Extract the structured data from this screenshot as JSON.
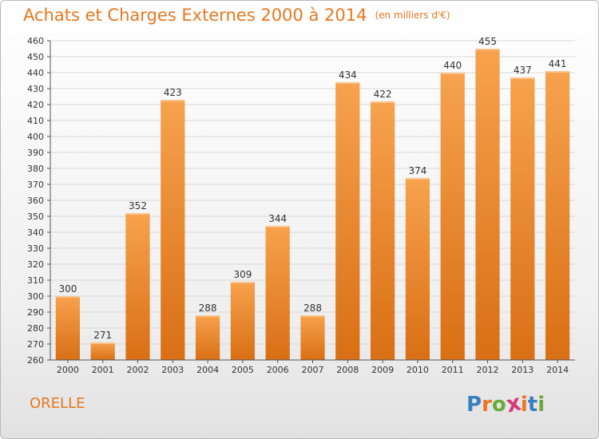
{
  "header": {
    "title": "Achats et Charges Externes 2000 à 2014",
    "unit": "(en milliers d'€)"
  },
  "footer": {
    "commune": "ORELLE",
    "logo_letters": [
      "P",
      "r",
      "o",
      "x",
      "i",
      "t",
      "i"
    ],
    "logo_colors": [
      "#3a7fc2",
      "#e8771e",
      "#6aaa3a",
      "#d63a7a",
      "#e8771e",
      "#3a7fc2",
      "#6aaa3a"
    ]
  },
  "colors": {
    "accent": "#e8771e",
    "bar_top": "#f7a24e",
    "bar_bottom": "#d96f14",
    "grid": "#d8d8d8"
  },
  "chart_data": {
    "type": "bar",
    "title": "Achats et Charges Externes 2000 à 2014",
    "subtitle": "(en milliers d'€)",
    "categories": [
      "2000",
      "2001",
      "2002",
      "2003",
      "2004",
      "2005",
      "2006",
      "2007",
      "2008",
      "2009",
      "2010",
      "2011",
      "2012",
      "2013",
      "2014"
    ],
    "values": [
      300,
      271,
      352,
      423,
      288,
      309,
      344,
      288,
      434,
      422,
      374,
      440,
      455,
      437,
      441
    ],
    "ylim": [
      260,
      460
    ],
    "ytick_step": 10,
    "grid": true
  }
}
